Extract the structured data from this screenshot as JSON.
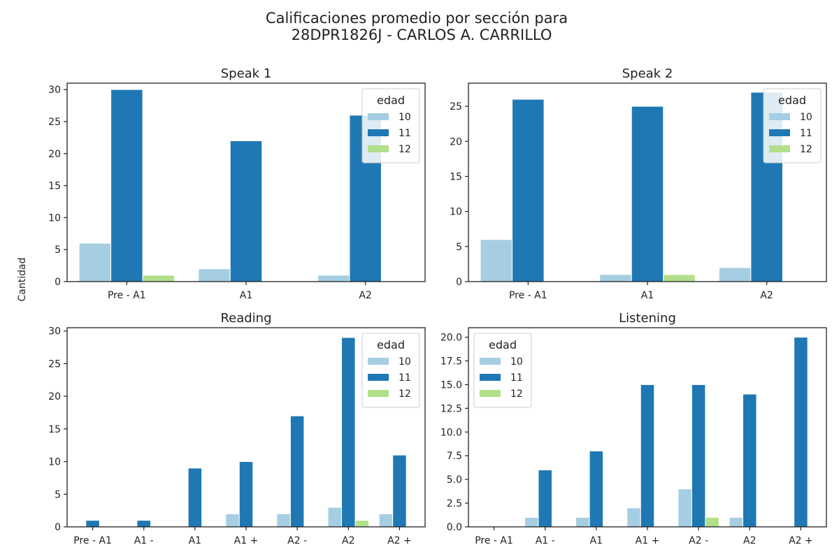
{
  "figure": {
    "title_line1": "Calificaciones promedio por sección para",
    "title_line2": "28DPR1826J - CARLOS A. CARRILLO",
    "ylabel": "Cantidad"
  },
  "colors": {
    "10": "#a6cee3",
    "11": "#1f78b4",
    "12": "#b2df8a"
  },
  "chart_data": [
    {
      "type": "bar",
      "title": "Speak 1",
      "categories": [
        "Pre - A1",
        "A1",
        "A2"
      ],
      "ylim": [
        0,
        31
      ],
      "yticks": [
        0,
        5,
        10,
        15,
        20,
        25,
        30
      ],
      "ytick_labels": [
        "0",
        "5",
        "10",
        "15",
        "20",
        "25",
        "30"
      ],
      "legend_title": "edad",
      "legend_position": "top-right",
      "series": [
        {
          "name": "10",
          "values": [
            6,
            2,
            1
          ]
        },
        {
          "name": "11",
          "values": [
            30,
            22,
            26
          ]
        },
        {
          "name": "12",
          "values": [
            1,
            0,
            0
          ]
        }
      ]
    },
    {
      "type": "bar",
      "title": "Speak 2",
      "categories": [
        "Pre - A1",
        "A1",
        "A2"
      ],
      "ylim": [
        0,
        28.3
      ],
      "yticks": [
        0,
        5,
        10,
        15,
        20,
        25
      ],
      "ytick_labels": [
        "0",
        "5",
        "10",
        "15",
        "20",
        "25"
      ],
      "legend_title": "edad",
      "legend_position": "top-right",
      "series": [
        {
          "name": "10",
          "values": [
            6,
            1,
            2
          ]
        },
        {
          "name": "11",
          "values": [
            26,
            25,
            27
          ]
        },
        {
          "name": "12",
          "values": [
            0,
            1,
            0
          ]
        }
      ]
    },
    {
      "type": "bar",
      "title": "Reading",
      "categories": [
        "Pre - A1",
        "A1 -",
        "A1",
        "A1 +",
        "A2 -",
        "A2",
        "A2 +"
      ],
      "ylim": [
        0,
        30.5
      ],
      "yticks": [
        0,
        5,
        10,
        15,
        20,
        25,
        30
      ],
      "ytick_labels": [
        "0",
        "5",
        "10",
        "15",
        "20",
        "25",
        "30"
      ],
      "legend_title": "edad",
      "legend_position": "top-right",
      "series": [
        {
          "name": "10",
          "values": [
            0,
            0,
            0,
            2,
            2,
            3,
            2
          ]
        },
        {
          "name": "11",
          "values": [
            1,
            1,
            9,
            10,
            17,
            29,
            11
          ]
        },
        {
          "name": "12",
          "values": [
            0,
            0,
            0,
            0,
            0,
            1,
            0
          ]
        }
      ]
    },
    {
      "type": "bar",
      "title": "Listening",
      "categories": [
        "Pre - A1",
        "A1 -",
        "A1",
        "A1 +",
        "A2 -",
        "A2",
        "A2 +"
      ],
      "ylim": [
        0,
        21
      ],
      "yticks": [
        0,
        2.5,
        5,
        7.5,
        10,
        12.5,
        15,
        17.5,
        20
      ],
      "ytick_labels": [
        "0.0",
        "2.5",
        "5.0",
        "7.5",
        "10.0",
        "12.5",
        "15.0",
        "17.5",
        "20.0"
      ],
      "legend_title": "edad",
      "legend_position": "top-left",
      "series": [
        {
          "name": "10",
          "values": [
            0,
            1,
            1,
            2,
            4,
            1,
            0
          ]
        },
        {
          "name": "11",
          "values": [
            0,
            6,
            8,
            15,
            15,
            14,
            20
          ]
        },
        {
          "name": "12",
          "values": [
            0,
            0,
            0,
            0,
            1,
            0,
            0
          ]
        }
      ]
    }
  ]
}
